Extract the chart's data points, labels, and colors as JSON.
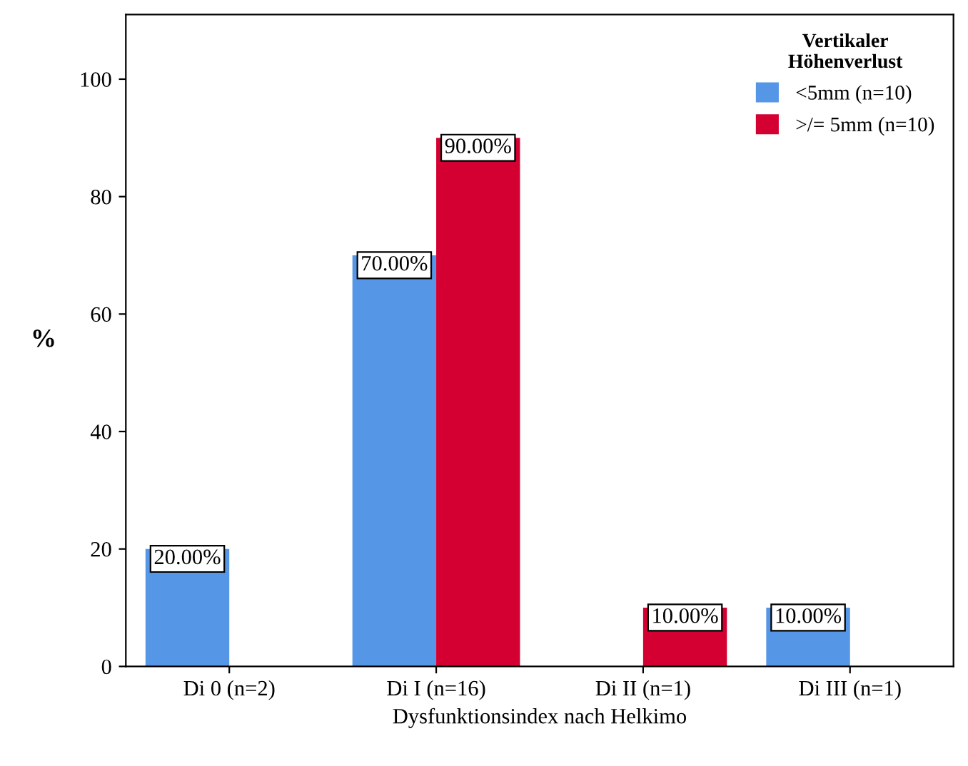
{
  "chart_data": {
    "type": "bar",
    "xlabel": "Dysfunktionsindex nach Helkimo",
    "ylabel": "%",
    "legend_title": "Vertikaler\nHöhenverlust",
    "categories": [
      "Di 0 (n=2)",
      "Di I (n=16)",
      "Di II (n=1)",
      "Di III (n=1)"
    ],
    "series": [
      {
        "name": "<5mm (n=10)",
        "color": "#5596e6",
        "values": [
          20,
          70,
          null,
          10
        ],
        "value_labels": [
          "20.00%",
          "70.00%",
          null,
          "10.00%"
        ]
      },
      {
        "name": ">/= 5mm (n=10)",
        "color": "#d50032",
        "values": [
          null,
          90,
          10,
          null
        ],
        "value_labels": [
          null,
          "90.00%",
          "10.00%",
          null
        ]
      }
    ],
    "ylim": [
      0,
      111
    ],
    "yticks": [
      0,
      20,
      40,
      60,
      80,
      100
    ],
    "grid": false,
    "legend": "top right"
  }
}
